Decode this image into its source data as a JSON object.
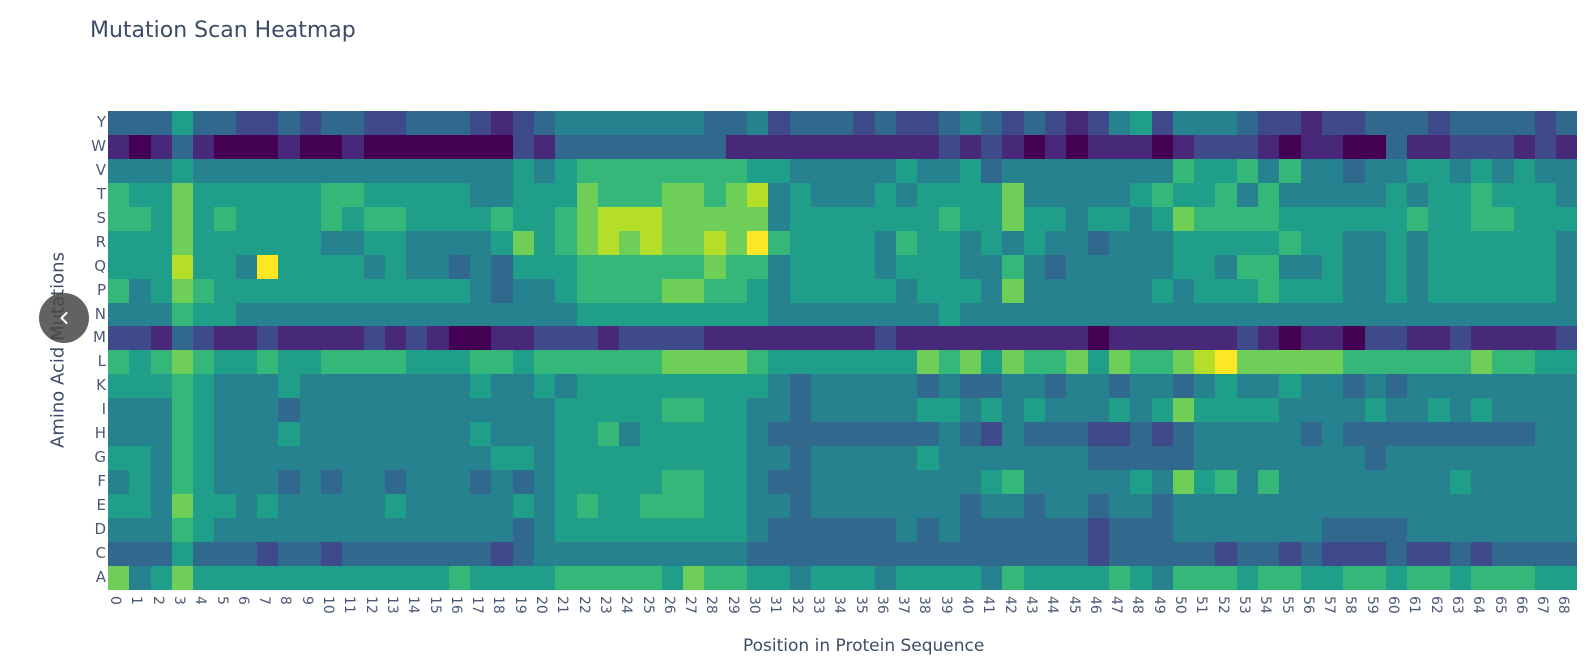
{
  "chart_data": {
    "type": "heatmap",
    "title": "Mutation Scan Heatmap",
    "xlabel": "Position in Protein Sequence",
    "ylabel": "Amino Acid Mutations",
    "x": [
      0,
      1,
      2,
      3,
      4,
      5,
      6,
      7,
      8,
      9,
      10,
      11,
      12,
      13,
      14,
      15,
      16,
      17,
      18,
      19,
      20,
      21,
      22,
      23,
      24,
      25,
      26,
      27,
      28,
      29,
      30,
      31,
      32,
      33,
      34,
      35,
      36,
      37,
      38,
      39,
      40,
      41,
      42,
      43,
      44,
      45,
      46,
      47,
      48,
      49,
      50,
      51,
      52,
      53,
      54,
      55,
      56,
      57,
      58,
      59,
      60,
      61,
      62,
      63,
      64,
      65,
      66,
      67,
      68
    ],
    "y": [
      "Y",
      "W",
      "V",
      "T",
      "S",
      "R",
      "Q",
      "P",
      "N",
      "M",
      "L",
      "K",
      "I",
      "H",
      "G",
      "F",
      "E",
      "D",
      "C",
      "A"
    ],
    "colorscale": "Viridis",
    "value_scale": "0-9 relative intensity (0=dark purple, 9=yellow)",
    "z_rows": {
      "Y": "333533223233223332123444444433423332322343232124524443221223332333323",
      "W": "101310001001000000021333333331111111111212101011101222101100311222121",
      "V": "444544444444444444454566666666554444454453444444446556464434455454544",
      "T": "655755555566555554455576667767845444545555744444565564644444545565554",
      "S": "665756555565665555655678887777745555555655755455457666655555565566555",
      "R": "555755555544554444575678787787965555465545454434445555565544545555554",
      "Q": "555855495555454434355566666676645555455544643444445546644544545555554",
      "P": "645765555555555554344566667766545555545554744444454555655544545555554",
      "N": "444655444444444444444455555555544444444544444444444444444444444444444",
      "M": "221321121111212100112221222211111111211111111101111112101102211211112",
      "L": "656765565566665556656666667777655555557675766757667897777766666676655",
      "K": "555654445444444445445455555555543444443433443443443454454434344444444",
      "I": "444654443444444444444555556655443444445545454445457555544445445454444",
      "H": "444654445444444445444556455555433333333432433322323444443433333333344",
      "G": "554654444444444444554555555555443444445444444433333444444443444444444",
      "F": "454654443434434443434555556655433444444445644444547564644444444544444",
      "E": "554755454444454444454565566655443444444434434434434444444444444444444",
      "D": "444654444444444444434555555555433333343433333323334444444333344444444",
      "C": "333533323323333333234444444444333333333333333323333323323222322323333",
      "A": "745755555555555565555666665766554555455554655556546665665566566566655"
    },
    "legend": "none",
    "grid": false
  },
  "ui": {
    "nav_prev_button": "previous"
  }
}
